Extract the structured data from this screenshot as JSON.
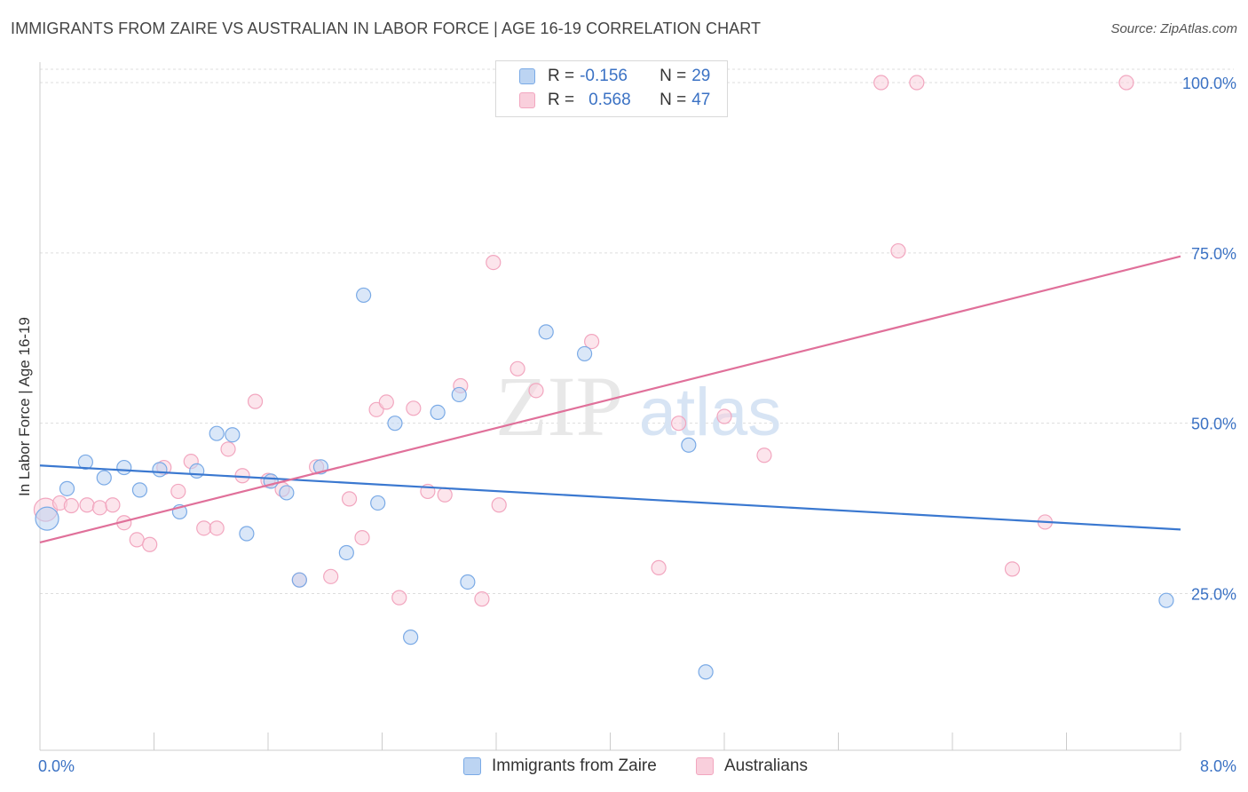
{
  "header": {
    "title": "IMMIGRANTS FROM ZAIRE VS AUSTRALIAN IN LABOR FORCE | AGE 16-19 CORRELATION CHART",
    "source": "Source: ZipAtlas.com"
  },
  "legend": {
    "r_label": "R =",
    "n_label": "N =",
    "entries": [
      {
        "r": "-0.156",
        "n": "29"
      },
      {
        "r": "0.568",
        "n": "47"
      }
    ]
  },
  "watermark": {
    "zip": "ZIP",
    "atlas": "atlas"
  },
  "chart_data": {
    "type": "scatter",
    "title": "IMMIGRANTS FROM ZAIRE VS AUSTRALIAN IN LABOR FORCE | AGE 16-19 CORRELATION CHART",
    "xlabel": "",
    "ylabel": "In Labor Force | Age 16-19",
    "xlim": [
      0,
      8
    ],
    "ylim": [
      2,
      103
    ],
    "x_tick_labels": [
      "0.0%",
      "8.0%"
    ],
    "y_ticks": [
      25,
      50,
      75,
      100
    ],
    "y_tick_labels": [
      "25.0%",
      "50.0%",
      "75.0%",
      "100.0%"
    ],
    "grid": true,
    "legend_position": "top-center",
    "colors": {
      "blue": "#7aaae6",
      "blue_line": "#3a78d0",
      "pink": "#f2a6bf",
      "pink_line": "#e0709a",
      "tick_text": "#3b72c4"
    },
    "series": [
      {
        "name": "Immigrants from Zaire",
        "color": "#7aaae6",
        "trend": {
          "x": [
            0,
            8
          ],
          "y": [
            43.8,
            34.4
          ]
        },
        "points": [
          {
            "x": 0.05,
            "y": 36.0,
            "size": "large"
          },
          {
            "x": 0.19,
            "y": 40.4
          },
          {
            "x": 0.32,
            "y": 44.3
          },
          {
            "x": 0.45,
            "y": 42.0
          },
          {
            "x": 0.59,
            "y": 43.5
          },
          {
            "x": 0.7,
            "y": 40.2
          },
          {
            "x": 0.84,
            "y": 43.2
          },
          {
            "x": 0.98,
            "y": 37.0
          },
          {
            "x": 1.1,
            "y": 43.0
          },
          {
            "x": 1.24,
            "y": 48.5
          },
          {
            "x": 1.35,
            "y": 48.3
          },
          {
            "x": 1.45,
            "y": 33.8
          },
          {
            "x": 1.62,
            "y": 41.5
          },
          {
            "x": 1.73,
            "y": 39.8
          },
          {
            "x": 1.82,
            "y": 27.0
          },
          {
            "x": 1.97,
            "y": 43.6
          },
          {
            "x": 2.15,
            "y": 31.0
          },
          {
            "x": 2.27,
            "y": 68.8
          },
          {
            "x": 2.37,
            "y": 38.3
          },
          {
            "x": 2.49,
            "y": 50.0
          },
          {
            "x": 2.6,
            "y": 18.6
          },
          {
            "x": 2.79,
            "y": 51.6
          },
          {
            "x": 2.94,
            "y": 54.2
          },
          {
            "x": 3.0,
            "y": 26.7
          },
          {
            "x": 3.55,
            "y": 63.4
          },
          {
            "x": 3.82,
            "y": 60.2
          },
          {
            "x": 4.55,
            "y": 46.8
          },
          {
            "x": 4.67,
            "y": 13.5
          },
          {
            "x": 7.9,
            "y": 24.0
          }
        ]
      },
      {
        "name": "Australians",
        "color": "#f2a6bf",
        "trend": {
          "x": [
            0,
            8
          ],
          "y": [
            32.5,
            74.5
          ]
        },
        "points": [
          {
            "x": 0.04,
            "y": 37.3,
            "size": "large"
          },
          {
            "x": 0.14,
            "y": 38.3
          },
          {
            "x": 0.22,
            "y": 37.9
          },
          {
            "x": 0.33,
            "y": 38.0
          },
          {
            "x": 0.42,
            "y": 37.6
          },
          {
            "x": 0.51,
            "y": 38.0
          },
          {
            "x": 0.59,
            "y": 35.4
          },
          {
            "x": 0.68,
            "y": 32.9
          },
          {
            "x": 0.77,
            "y": 32.2
          },
          {
            "x": 0.87,
            "y": 43.5
          },
          {
            "x": 0.97,
            "y": 40.0
          },
          {
            "x": 1.06,
            "y": 44.4
          },
          {
            "x": 1.15,
            "y": 34.6
          },
          {
            "x": 1.24,
            "y": 34.6
          },
          {
            "x": 1.32,
            "y": 46.2
          },
          {
            "x": 1.42,
            "y": 42.3
          },
          {
            "x": 1.51,
            "y": 53.2
          },
          {
            "x": 1.6,
            "y": 41.6
          },
          {
            "x": 1.7,
            "y": 40.3
          },
          {
            "x": 1.82,
            "y": 27.0
          },
          {
            "x": 1.94,
            "y": 43.6
          },
          {
            "x": 2.04,
            "y": 27.5
          },
          {
            "x": 2.17,
            "y": 38.9
          },
          {
            "x": 2.26,
            "y": 33.2
          },
          {
            "x": 2.36,
            "y": 52.0
          },
          {
            "x": 2.43,
            "y": 53.1
          },
          {
            "x": 2.52,
            "y": 24.4
          },
          {
            "x": 2.62,
            "y": 52.2
          },
          {
            "x": 2.72,
            "y": 40.0
          },
          {
            "x": 2.84,
            "y": 39.5
          },
          {
            "x": 2.95,
            "y": 55.5
          },
          {
            "x": 3.1,
            "y": 24.2
          },
          {
            "x": 3.18,
            "y": 73.6
          },
          {
            "x": 3.22,
            "y": 38.0
          },
          {
            "x": 3.35,
            "y": 58.0
          },
          {
            "x": 3.48,
            "y": 54.8
          },
          {
            "x": 3.87,
            "y": 62.0
          },
          {
            "x": 4.34,
            "y": 28.8
          },
          {
            "x": 4.48,
            "y": 50.0
          },
          {
            "x": 4.8,
            "y": 51.0
          },
          {
            "x": 5.08,
            "y": 45.3
          },
          {
            "x": 5.9,
            "y": 100.0
          },
          {
            "x": 6.02,
            "y": 75.3
          },
          {
            "x": 6.15,
            "y": 100.0
          },
          {
            "x": 6.82,
            "y": 28.6
          },
          {
            "x": 7.05,
            "y": 35.5
          },
          {
            "x": 7.62,
            "y": 100.0
          }
        ]
      }
    ]
  }
}
